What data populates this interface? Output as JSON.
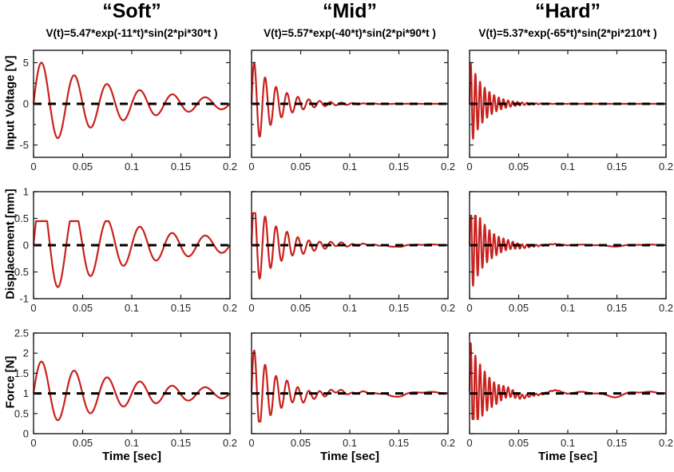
{
  "figure": {
    "background": "#ffffff",
    "curve_color": "#c9211d",
    "dash_color": "#000000",
    "axis_color": "#1a1a1a",
    "tick_label_color": "#242424"
  },
  "columns": [
    {
      "title": "“Soft”",
      "formula": "V(t)=5.47*exp(-11*t)*sin(2*pi*30*t )",
      "xlabel": "Time [sec]"
    },
    {
      "title": "“Mid”",
      "formula": "V(t)=5.57*exp(-40*t)*sin(2*pi*90*t )",
      "xlabel": "Time [sec]"
    },
    {
      "title": "“Hard”",
      "formula": "V(t)=5.37*exp(-65*t)*sin(2*pi*210*t )",
      "xlabel": "Time [sec]"
    }
  ],
  "rows": [
    {
      "ylabel": "Input Voltage [V]"
    },
    {
      "ylabel": "Displacement [mm]"
    },
    {
      "ylabel": "Force [N]"
    }
  ],
  "chart_data": [
    {
      "id": "voltage-soft",
      "type": "line",
      "row": 0,
      "col": 0,
      "xlim": [
        0,
        0.2
      ],
      "xticks": [
        0,
        0.05,
        0.1,
        0.15,
        0.2
      ],
      "xtick_labels": [
        "0",
        "0.05",
        "0.1",
        "0.15",
        "0.2"
      ],
      "ylim": [
        -6.5,
        6.5
      ],
      "yticks": [
        5,
        0,
        -5
      ],
      "ytick_labels": [
        "5",
        "0",
        "-5"
      ],
      "yminor": [
        2.5,
        -2.5
      ],
      "baseline": 0,
      "signal": {
        "model": "V(t)=A*exp(-decay*t)*sin(2*pi*freq*t)",
        "amplitude": 5.47,
        "decay": 11,
        "freq_hz": 30,
        "base": 0,
        "clip": null,
        "noise": 0
      }
    },
    {
      "id": "voltage-mid",
      "type": "line",
      "row": 0,
      "col": 1,
      "xlim": [
        0,
        0.2
      ],
      "xticks": [
        0,
        0.05,
        0.1,
        0.15,
        0.2
      ],
      "xtick_labels": [
        "0",
        "0.05",
        "0.1",
        "0.15",
        "0.2"
      ],
      "ylim": [
        -6.5,
        6.5
      ],
      "yticks": [
        5,
        0,
        -5
      ],
      "ytick_labels": [
        "5",
        "0",
        "-5"
      ],
      "yminor": [
        2.5,
        -2.5
      ],
      "baseline": 0,
      "signal": {
        "model": "V(t)=A*exp(-decay*t)*sin(2*pi*freq*t)",
        "amplitude": 5.57,
        "decay": 40,
        "freq_hz": 90,
        "base": 0,
        "clip": null,
        "noise": 0
      }
    },
    {
      "id": "voltage-hard",
      "type": "line",
      "row": 0,
      "col": 2,
      "xlim": [
        0,
        0.2
      ],
      "xticks": [
        0,
        0.05,
        0.1,
        0.15,
        0.2
      ],
      "xtick_labels": [
        "0",
        "0.05",
        "0.1",
        "0.15",
        "0.2"
      ],
      "ylim": [
        -6.5,
        6.5
      ],
      "yticks": [
        5,
        0,
        -5
      ],
      "ytick_labels": [
        "5",
        "0",
        "-5"
      ],
      "yminor": [
        2.5,
        -2.5
      ],
      "baseline": 0,
      "signal": {
        "model": "V(t)=A*exp(-decay*t)*sin(2*pi*freq*t)",
        "amplitude": 5.37,
        "decay": 65,
        "freq_hz": 210,
        "base": 0,
        "clip": null,
        "noise": 0
      }
    },
    {
      "id": "displacement-soft",
      "type": "line",
      "row": 1,
      "col": 0,
      "xlim": [
        0,
        0.2
      ],
      "xticks": [
        0,
        0.05,
        0.1,
        0.15,
        0.2
      ],
      "xtick_labels": [
        "0",
        "0.05",
        "0.1",
        "0.15",
        "0.2"
      ],
      "ylim": [
        -1,
        1
      ],
      "yticks": [
        1,
        0.5,
        0,
        -0.5,
        -1
      ],
      "ytick_labels": [
        "1",
        "0.5",
        "0",
        "-0.5",
        "-1"
      ],
      "yminor": [],
      "baseline": 0,
      "signal": {
        "model": "damped sine, clipped peaks",
        "amplitude": 1.0,
        "decay": 10,
        "freq_hz": 30,
        "base": 0,
        "clip": [
          -0.87,
          0.45
        ],
        "noise": 0.012
      }
    },
    {
      "id": "displacement-mid",
      "type": "line",
      "row": 1,
      "col": 1,
      "xlim": [
        0,
        0.2
      ],
      "xticks": [
        0,
        0.05,
        0.1,
        0.15,
        0.2
      ],
      "xtick_labels": [
        "0",
        "0.05",
        "0.1",
        "0.15",
        "0.2"
      ],
      "ylim": [
        -1,
        1
      ],
      "yticks": [
        1,
        0.5,
        0,
        -0.5,
        -1
      ],
      "ytick_labels": [
        "1",
        "0.5",
        "0",
        "-0.5",
        "-1"
      ],
      "yminor": [],
      "baseline": 0,
      "signal": {
        "model": "damped sine, clipped peaks",
        "amplitude": 0.85,
        "decay": 35,
        "freq_hz": 90,
        "base": 0,
        "clip": [
          -0.88,
          0.6
        ],
        "noise": 0.015
      }
    },
    {
      "id": "displacement-hard",
      "type": "line",
      "row": 1,
      "col": 2,
      "xlim": [
        0,
        0.2
      ],
      "xticks": [
        0,
        0.05,
        0.1,
        0.15,
        0.2
      ],
      "xtick_labels": [
        "0",
        "0.05",
        "0.1",
        "0.15",
        "0.2"
      ],
      "ylim": [
        -1,
        1
      ],
      "yticks": [
        1,
        0.5,
        0,
        -0.5,
        -1
      ],
      "ytick_labels": [
        "1",
        "0.5",
        "0",
        "-0.5",
        "-1"
      ],
      "yminor": [],
      "baseline": 0,
      "signal": {
        "model": "damped sine, clipped peaks",
        "amplitude": 0.95,
        "decay": 60,
        "freq_hz": 210,
        "base": 0,
        "clip": [
          -0.9,
          0.55
        ],
        "noise": 0.012
      }
    },
    {
      "id": "force-soft",
      "type": "line",
      "row": 2,
      "col": 0,
      "xlim": [
        0,
        0.2
      ],
      "xticks": [
        0,
        0.05,
        0.1,
        0.15,
        0.2
      ],
      "xtick_labels": [
        "0",
        "0.05",
        "0.1",
        "0.15",
        "0.2"
      ],
      "ylim": [
        0,
        2.5
      ],
      "yticks": [
        2.5,
        2,
        1.5,
        1,
        0.5,
        0
      ],
      "ytick_labels": [
        "2.5",
        "2",
        "1.5",
        "1",
        "0.5",
        "0"
      ],
      "yminor": [],
      "baseline": 1,
      "signal": {
        "model": "damped sine about 1 N",
        "amplitude": 0.85,
        "decay": 10,
        "freq_hz": 30,
        "base": 1,
        "clip": null,
        "noise": 0.012
      }
    },
    {
      "id": "force-mid",
      "type": "line",
      "row": 2,
      "col": 1,
      "xlim": [
        0,
        0.2
      ],
      "xticks": [
        0,
        0.05,
        0.1,
        0.15,
        0.2
      ],
      "xtick_labels": [
        "0",
        "0.05",
        "0.1",
        "0.15",
        "0.2"
      ],
      "ylim": [
        0,
        2.5
      ],
      "yticks": [
        2.5,
        2,
        1.5,
        1,
        0.5,
        0
      ],
      "ytick_labels": [
        "2.5",
        "2",
        "1.5",
        "1",
        "0.5",
        "0"
      ],
      "yminor": [],
      "baseline": 1,
      "signal": {
        "model": "damped sine about 1 N with residual ripple",
        "amplitude": 1.15,
        "decay": 38,
        "freq_hz": 90,
        "base": 1,
        "clip": [
          0.3,
          2.3
        ],
        "noise": 0.04
      }
    },
    {
      "id": "force-hard",
      "type": "line",
      "row": 2,
      "col": 2,
      "xlim": [
        0,
        0.2
      ],
      "xticks": [
        0,
        0.05,
        0.1,
        0.15,
        0.2
      ],
      "xtick_labels": [
        "0",
        "0.05",
        "0.1",
        "0.15",
        "0.2"
      ],
      "ylim": [
        0,
        2.5
      ],
      "yticks": [
        2.5,
        2,
        1.5,
        1,
        0.5,
        0
      ],
      "ytick_labels": [
        "2.5",
        "2",
        "1.5",
        "1",
        "0.5",
        "0"
      ],
      "yminor": [],
      "baseline": 1,
      "signal": {
        "model": "damped sine about 1 N with residual ripple",
        "amplitude": 1.3,
        "decay": 60,
        "freq_hz": 210,
        "base": 1,
        "clip": [
          0.36,
          2.35
        ],
        "noise": 0.045
      }
    }
  ]
}
